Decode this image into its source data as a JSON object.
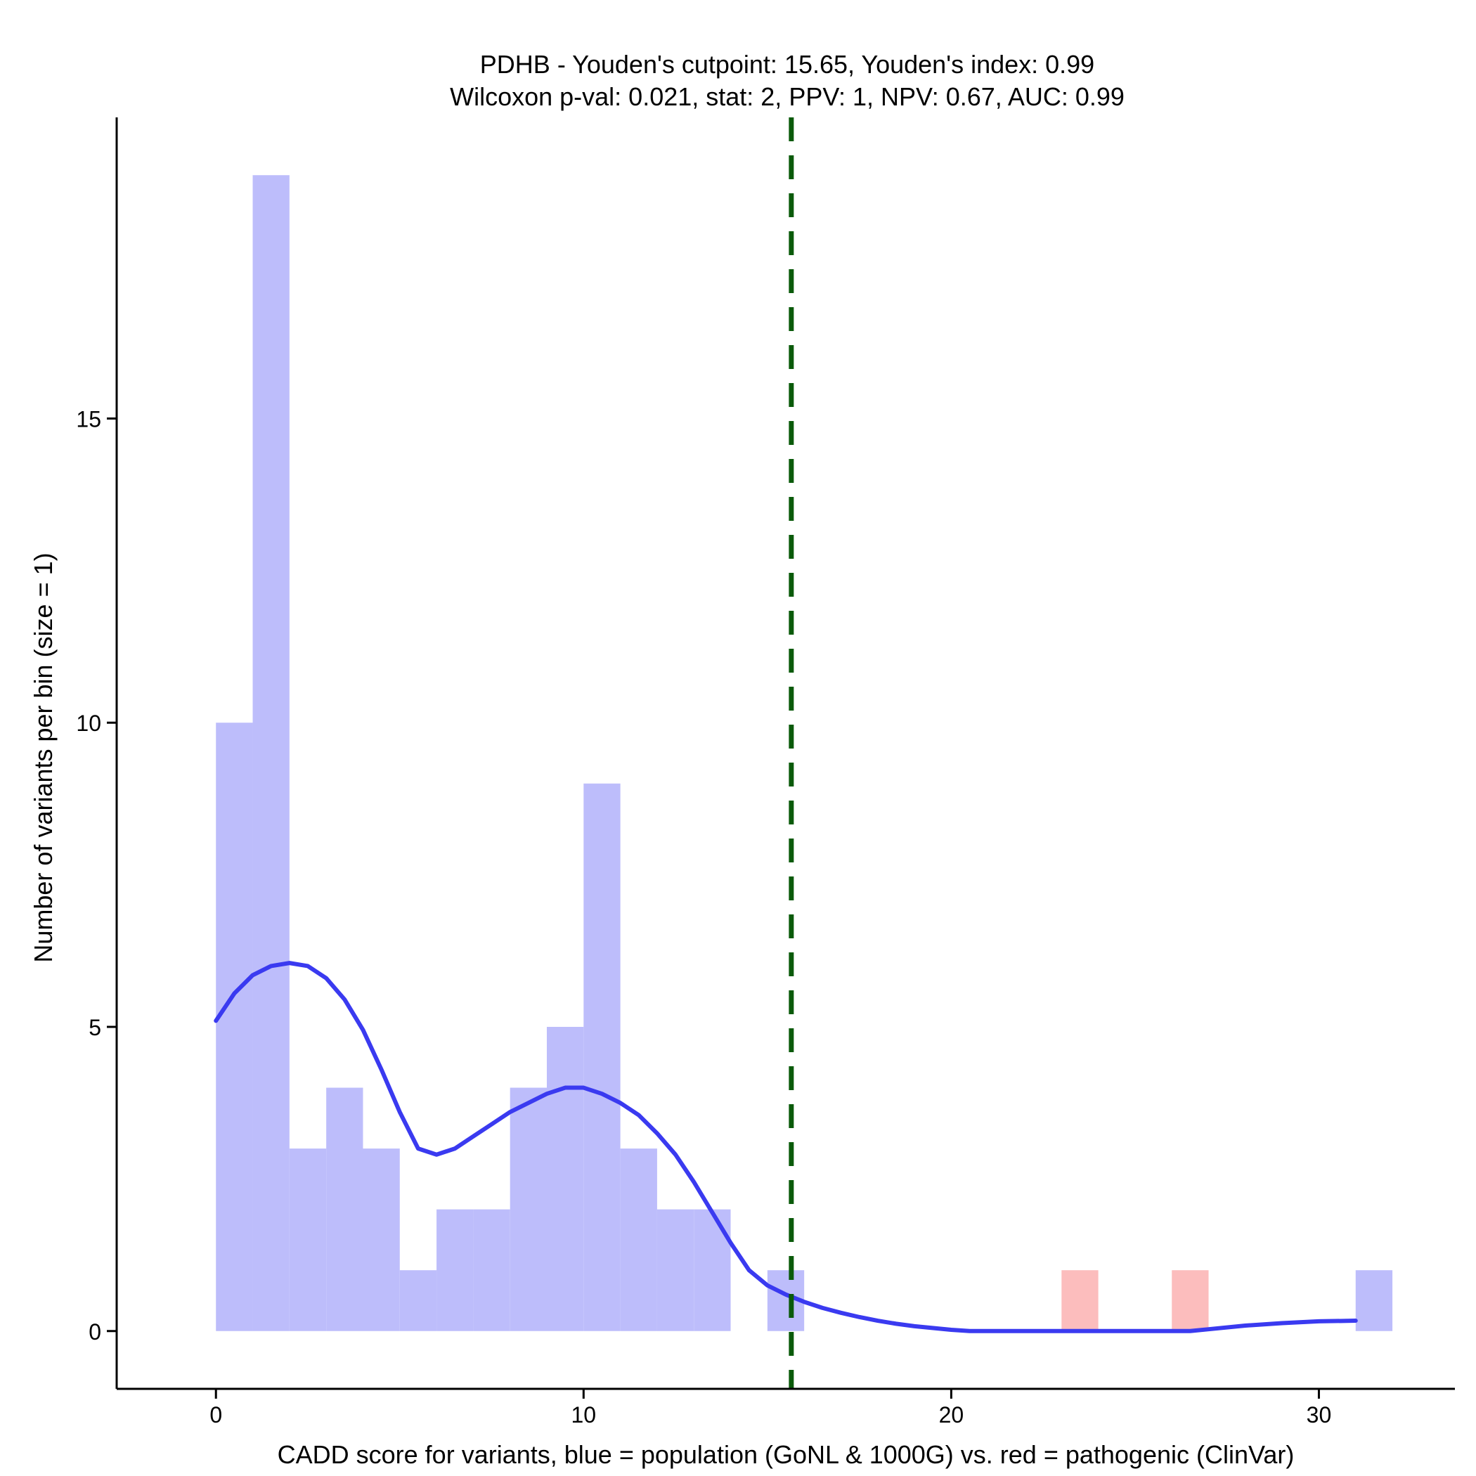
{
  "chart_data": {
    "type": "histogram",
    "title": "PDHB - Youden's cutpoint: 15.65, Youden's index: 0.99",
    "subtitle": "Wilcoxon p-val: 0.021, stat: 2, PPV: 1, NPV: 0.67, AUC: 0.99",
    "xlabel": "CADD score for variants, blue = population (GoNL & 1000G) vs. red = pathogenic (ClinVar)",
    "ylabel": "Number of variants per bin (size = 1)",
    "xlim": [
      -2.7,
      33.7
    ],
    "ylim": [
      -0.95,
      19.95
    ],
    "x_ticks": [
      0,
      10,
      20,
      30
    ],
    "y_ticks": [
      0,
      5,
      10,
      15
    ],
    "bin_width": 1,
    "series": [
      {
        "color": "#bdbdfb",
        "bins": [
          {
            "start": 0,
            "count": 10
          },
          {
            "start": 1,
            "count": 19
          },
          {
            "start": 2,
            "count": 3
          },
          {
            "start": 3,
            "count": 4
          },
          {
            "start": 4,
            "count": 3
          },
          {
            "start": 5,
            "count": 1
          },
          {
            "start": 6,
            "count": 2
          },
          {
            "start": 7,
            "count": 2
          },
          {
            "start": 8,
            "count": 4
          },
          {
            "start": 9,
            "count": 5
          },
          {
            "start": 10,
            "count": 9
          },
          {
            "start": 11,
            "count": 3
          },
          {
            "start": 12,
            "count": 2
          },
          {
            "start": 13,
            "count": 2
          },
          {
            "start": 15,
            "count": 1
          },
          {
            "start": 31,
            "count": 1
          }
        ]
      },
      {
        "color": "#fcbdbd",
        "bins": [
          {
            "start": 23,
            "count": 1
          },
          {
            "start": 26,
            "count": 1
          }
        ]
      }
    ],
    "density_curve": {
      "color": "#3a3af0",
      "points": [
        [
          0,
          5.1
        ],
        [
          0.5,
          5.55
        ],
        [
          1,
          5.85
        ],
        [
          1.5,
          6.0
        ],
        [
          2,
          6.05
        ],
        [
          2.5,
          6.0
        ],
        [
          3,
          5.8
        ],
        [
          3.5,
          5.45
        ],
        [
          4,
          4.95
        ],
        [
          4.5,
          4.3
        ],
        [
          5,
          3.6
        ],
        [
          5.5,
          3.0
        ],
        [
          6,
          2.9
        ],
        [
          6.5,
          3.0
        ],
        [
          7,
          3.2
        ],
        [
          7.5,
          3.4
        ],
        [
          8,
          3.6
        ],
        [
          8.5,
          3.75
        ],
        [
          9,
          3.9
        ],
        [
          9.5,
          4.0
        ],
        [
          10,
          4.0
        ],
        [
          10.5,
          3.9
        ],
        [
          11,
          3.75
        ],
        [
          11.5,
          3.55
        ],
        [
          12,
          3.25
        ],
        [
          12.5,
          2.9
        ],
        [
          13,
          2.45
        ],
        [
          13.5,
          1.95
        ],
        [
          14,
          1.45
        ],
        [
          14.5,
          1.0
        ],
        [
          15,
          0.75
        ],
        [
          15.5,
          0.6
        ],
        [
          16,
          0.48
        ],
        [
          16.5,
          0.38
        ],
        [
          17,
          0.3
        ],
        [
          17.5,
          0.23
        ],
        [
          18,
          0.17
        ],
        [
          18.5,
          0.12
        ],
        [
          19,
          0.08
        ],
        [
          20,
          0.02
        ],
        [
          20.5,
          0
        ],
        [
          21,
          0
        ],
        [
          22,
          0
        ],
        [
          23,
          0
        ],
        [
          24,
          0
        ],
        [
          25,
          0
        ],
        [
          26,
          0
        ],
        [
          26.5,
          0
        ],
        [
          27,
          0.03
        ],
        [
          28,
          0.09
        ],
        [
          29,
          0.13
        ],
        [
          30,
          0.16
        ],
        [
          31,
          0.17
        ]
      ]
    },
    "cutpoint": {
      "x": 15.65,
      "color": "#0a5a0a",
      "style": "dashed"
    }
  }
}
